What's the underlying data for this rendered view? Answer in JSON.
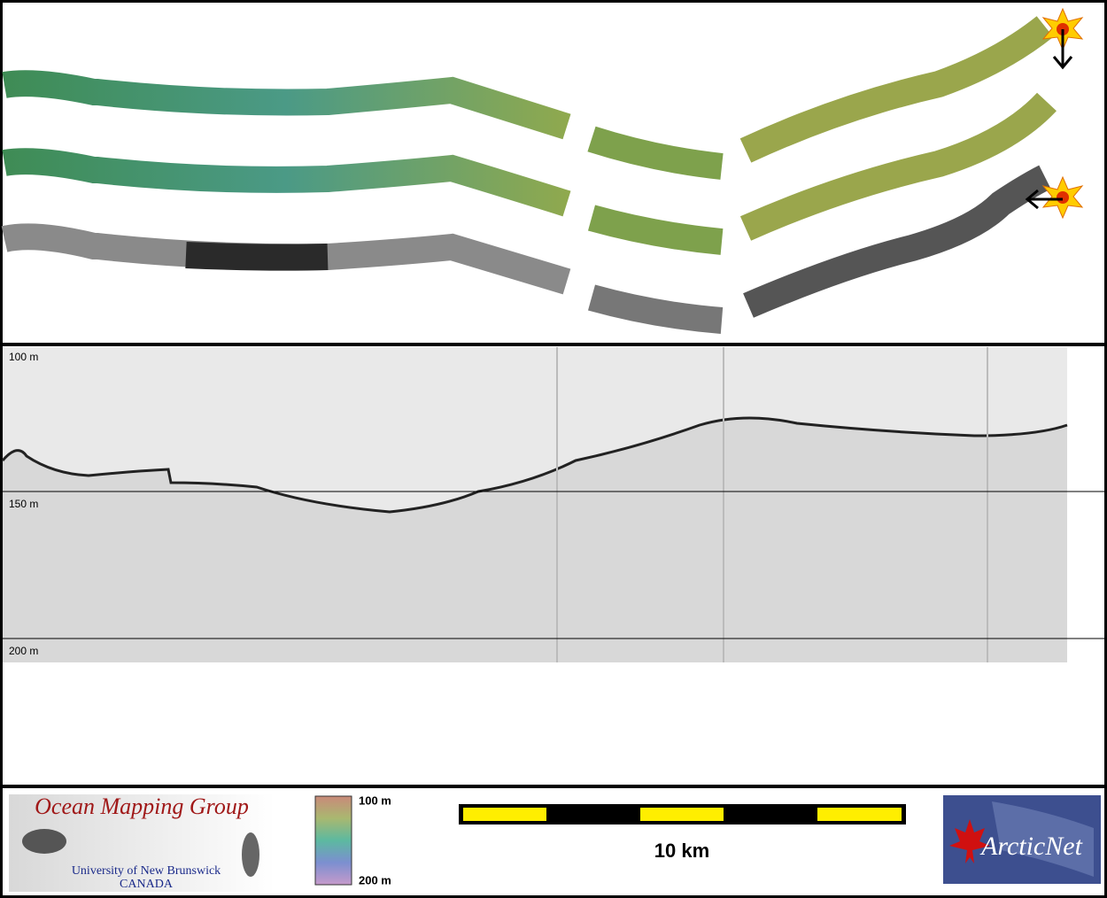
{
  "echogram": {
    "depth_labels": [
      "100 m",
      "150 m",
      "200 m"
    ]
  },
  "legend": {
    "colorbar_top": "100 m",
    "colorbar_bottom": "200 m",
    "scale_label": "10 km"
  },
  "logos": {
    "omg_title": "Ocean Mapping Group",
    "omg_university": "University of New Brunswick",
    "omg_country": "CANADA",
    "arcticnet": "ArcticNet"
  }
}
